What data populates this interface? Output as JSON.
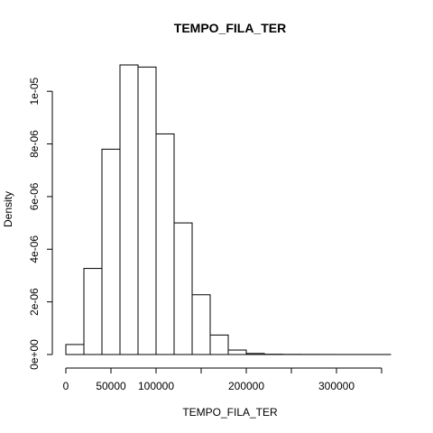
{
  "chart_data": {
    "type": "bar",
    "title": "TEMPO_FILA_TER",
    "xlabel": "TEMPO_FILA_TER",
    "ylabel": "Density",
    "bin_edges": [
      0,
      20000,
      40000,
      60000,
      80000,
      100000,
      120000,
      140000,
      160000,
      180000,
      200000,
      220000,
      240000,
      260000,
      280000,
      300000,
      320000,
      340000,
      360000
    ],
    "values": [
      3.8e-07,
      3.27e-06,
      7.8e-06,
      1.1e-05,
      1.092e-05,
      8.38e-06,
      5e-06,
      2.27e-06,
      7.4e-07,
      1.7e-07,
      4e-08,
      1e-08,
      5e-09,
      3e-09,
      2e-09,
      1e-09,
      1e-09,
      1e-09
    ],
    "xlim": [
      0,
      360000
    ],
    "ylim": [
      0,
      1.1e-05
    ],
    "x_ticks": [
      0,
      50000,
      100000,
      150000,
      200000,
      250000,
      300000,
      350000
    ],
    "x_tick_labels": [
      "0",
      "50000",
      "100000",
      "",
      "200000",
      "",
      "300000",
      ""
    ],
    "y_ticks": [
      0,
      2e-06,
      4e-06,
      6e-06,
      8e-06,
      1e-05
    ],
    "y_tick_labels": [
      "0e+00",
      "2e-06",
      "4e-06",
      "6e-06",
      "8e-06",
      "1e-05"
    ],
    "grid": false,
    "legend": "none"
  }
}
